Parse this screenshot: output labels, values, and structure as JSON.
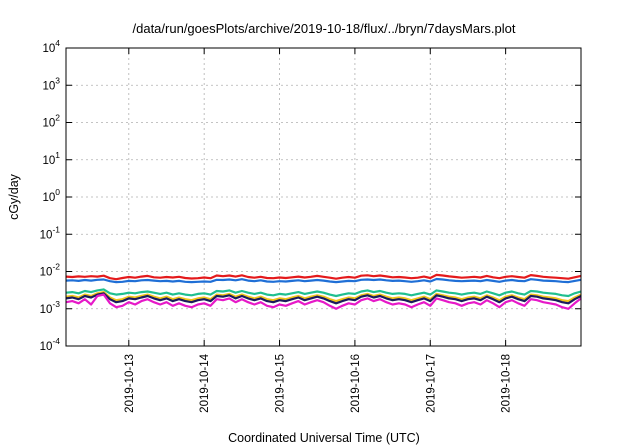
{
  "chart_data": {
    "type": "line",
    "title": "/data/run/goesPlots/archive/2019-10-18/flux/../bryn/7daysMars.plot",
    "xlabel": "Coordinated Universal Time (UTC)",
    "ylabel": "cGy/day",
    "y_scale": "log",
    "ylim": [
      0.0001,
      10000
    ],
    "xlim": [
      "2019-10-12T04:00",
      "2019-10-19T00:00"
    ],
    "y_ticks": [
      {
        "value": 0.0001,
        "base": "10",
        "exp": "-4"
      },
      {
        "value": 0.001,
        "base": "10",
        "exp": "-3"
      },
      {
        "value": 0.01,
        "base": "10",
        "exp": "-2"
      },
      {
        "value": 0.1,
        "base": "10",
        "exp": "-1"
      },
      {
        "value": 1,
        "base": "10",
        "exp": "0"
      },
      {
        "value": 10,
        "base": "10",
        "exp": "1"
      },
      {
        "value": 100,
        "base": "10",
        "exp": "2"
      },
      {
        "value": 1000,
        "base": "10",
        "exp": "3"
      },
      {
        "value": 10000,
        "base": "10",
        "exp": "4"
      }
    ],
    "x_ticks": [
      {
        "value": "2019-10-13T00:00",
        "label": "2019-10-13"
      },
      {
        "value": "2019-10-14T00:00",
        "label": "2019-10-14"
      },
      {
        "value": "2019-10-15T00:00",
        "label": "2019-10-15"
      },
      {
        "value": "2019-10-16T00:00",
        "label": "2019-10-16"
      },
      {
        "value": "2019-10-17T00:00",
        "label": "2019-10-17"
      },
      {
        "value": "2019-10-18T00:00",
        "label": "2019-10-18"
      }
    ],
    "grid": true,
    "x": [
      "2019-10-12T04:00",
      "2019-10-12T06:00",
      "2019-10-12T08:00",
      "2019-10-12T10:00",
      "2019-10-12T12:00",
      "2019-10-12T14:00",
      "2019-10-12T16:00",
      "2019-10-12T18:00",
      "2019-10-12T20:00",
      "2019-10-12T22:00",
      "2019-10-13T00:00",
      "2019-10-13T02:00",
      "2019-10-13T04:00",
      "2019-10-13T06:00",
      "2019-10-13T08:00",
      "2019-10-13T10:00",
      "2019-10-13T12:00",
      "2019-10-13T14:00",
      "2019-10-13T16:00",
      "2019-10-13T18:00",
      "2019-10-13T20:00",
      "2019-10-13T22:00",
      "2019-10-14T00:00",
      "2019-10-14T02:00",
      "2019-10-14T04:00",
      "2019-10-14T06:00",
      "2019-10-14T08:00",
      "2019-10-14T10:00",
      "2019-10-14T12:00",
      "2019-10-14T14:00",
      "2019-10-14T16:00",
      "2019-10-14T18:00",
      "2019-10-14T20:00",
      "2019-10-14T22:00",
      "2019-10-15T00:00",
      "2019-10-15T02:00",
      "2019-10-15T04:00",
      "2019-10-15T06:00",
      "2019-10-15T08:00",
      "2019-10-15T10:00",
      "2019-10-15T12:00",
      "2019-10-15T14:00",
      "2019-10-15T16:00",
      "2019-10-15T18:00",
      "2019-10-15T20:00",
      "2019-10-15T22:00",
      "2019-10-16T00:00",
      "2019-10-16T02:00",
      "2019-10-16T04:00",
      "2019-10-16T06:00",
      "2019-10-16T08:00",
      "2019-10-16T10:00",
      "2019-10-16T12:00",
      "2019-10-16T14:00",
      "2019-10-16T16:00",
      "2019-10-16T18:00",
      "2019-10-16T20:00",
      "2019-10-16T22:00",
      "2019-10-17T00:00",
      "2019-10-17T02:00",
      "2019-10-17T04:00",
      "2019-10-17T06:00",
      "2019-10-17T08:00",
      "2019-10-17T10:00",
      "2019-10-17T12:00",
      "2019-10-17T14:00",
      "2019-10-17T16:00",
      "2019-10-17T18:00",
      "2019-10-17T20:00",
      "2019-10-17T22:00",
      "2019-10-18T00:00",
      "2019-10-18T02:00",
      "2019-10-18T04:00",
      "2019-10-18T06:00",
      "2019-10-18T08:00",
      "2019-10-18T10:00",
      "2019-10-18T12:00",
      "2019-10-18T14:00",
      "2019-10-18T16:00",
      "2019-10-18T18:00",
      "2019-10-18T20:00",
      "2019-10-18T22:00",
      "2019-10-19T00:00"
    ],
    "series": [
      {
        "color": "#e41a1c",
        "values": [
          0.0073,
          0.0071,
          0.0074,
          0.0072,
          0.0075,
          0.0073,
          0.0077,
          0.0066,
          0.0062,
          0.0067,
          0.0071,
          0.0068,
          0.0073,
          0.0076,
          0.007,
          0.0068,
          0.0071,
          0.0069,
          0.0072,
          0.0067,
          0.0065,
          0.0066,
          0.0069,
          0.0066,
          0.0078,
          0.0075,
          0.0078,
          0.0073,
          0.0079,
          0.0071,
          0.0068,
          0.0072,
          0.0067,
          0.0066,
          0.0069,
          0.0067,
          0.007,
          0.0073,
          0.0069,
          0.0072,
          0.0076,
          0.0072,
          0.0068,
          0.0064,
          0.0068,
          0.0071,
          0.0068,
          0.0077,
          0.0079,
          0.0075,
          0.0078,
          0.0074,
          0.007,
          0.0071,
          0.0069,
          0.0066,
          0.0068,
          0.0073,
          0.0067,
          0.0081,
          0.0078,
          0.0074,
          0.0071,
          0.0068,
          0.007,
          0.0072,
          0.0069,
          0.0076,
          0.007,
          0.0066,
          0.0072,
          0.0075,
          0.0071,
          0.0068,
          0.008,
          0.0076,
          0.0072,
          0.007,
          0.0068,
          0.0066,
          0.0064,
          0.007,
          0.0076
        ]
      },
      {
        "color": "#1f6fd6",
        "values": [
          0.0057,
          0.0058,
          0.0056,
          0.0059,
          0.0057,
          0.006,
          0.0061,
          0.0055,
          0.0052,
          0.0053,
          0.0056,
          0.0055,
          0.0058,
          0.0059,
          0.0057,
          0.0055,
          0.0056,
          0.0054,
          0.0056,
          0.0053,
          0.0052,
          0.0053,
          0.0054,
          0.0053,
          0.006,
          0.0059,
          0.0061,
          0.0058,
          0.0062,
          0.0057,
          0.0055,
          0.0058,
          0.0054,
          0.0053,
          0.0055,
          0.0054,
          0.0056,
          0.0058,
          0.0055,
          0.0057,
          0.0059,
          0.0057,
          0.0054,
          0.0052,
          0.0054,
          0.0056,
          0.0055,
          0.006,
          0.0061,
          0.0059,
          0.0061,
          0.0058,
          0.0056,
          0.0057,
          0.0055,
          0.0053,
          0.0055,
          0.0058,
          0.0054,
          0.0063,
          0.0061,
          0.0058,
          0.0056,
          0.0055,
          0.0056,
          0.0057,
          0.0055,
          0.0059,
          0.0056,
          0.0053,
          0.0057,
          0.0059,
          0.0056,
          0.0055,
          0.0062,
          0.006,
          0.0057,
          0.0056,
          0.0055,
          0.0053,
          0.0052,
          0.0056,
          0.006
        ]
      },
      {
        "color": "#1fbf8f",
        "values": [
          0.0027,
          0.0028,
          0.0026,
          0.003,
          0.0028,
          0.0031,
          0.0033,
          0.0026,
          0.0024,
          0.0025,
          0.0027,
          0.0026,
          0.0028,
          0.0029,
          0.0027,
          0.0025,
          0.0027,
          0.0024,
          0.0026,
          0.0024,
          0.0023,
          0.0025,
          0.0026,
          0.0024,
          0.003,
          0.0029,
          0.0031,
          0.0027,
          0.003,
          0.0027,
          0.0025,
          0.0027,
          0.0024,
          0.0023,
          0.0025,
          0.0024,
          0.0026,
          0.0028,
          0.0025,
          0.0027,
          0.0029,
          0.0027,
          0.0024,
          0.0022,
          0.0024,
          0.0026,
          0.0025,
          0.0029,
          0.0031,
          0.0028,
          0.003,
          0.0027,
          0.0025,
          0.0026,
          0.0025,
          0.0023,
          0.0025,
          0.0027,
          0.0024,
          0.0031,
          0.0029,
          0.0027,
          0.0026,
          0.0024,
          0.0026,
          0.0027,
          0.0025,
          0.0029,
          0.0026,
          0.0023,
          0.0027,
          0.0029,
          0.0026,
          0.0024,
          0.003,
          0.0029,
          0.0027,
          0.0026,
          0.0025,
          0.0023,
          0.0022,
          0.0026,
          0.0029
        ]
      },
      {
        "color": "#f0c419",
        "values": [
          0.0021,
          0.0022,
          0.002,
          0.0024,
          0.0022,
          0.0026,
          0.0028,
          0.002,
          0.0017,
          0.0018,
          0.0021,
          0.002,
          0.0022,
          0.0024,
          0.0021,
          0.0019,
          0.0021,
          0.0018,
          0.002,
          0.0018,
          0.0017,
          0.0019,
          0.002,
          0.0018,
          0.0024,
          0.0023,
          0.0025,
          0.0021,
          0.0024,
          0.0021,
          0.0019,
          0.0021,
          0.0018,
          0.0017,
          0.0019,
          0.0018,
          0.002,
          0.0022,
          0.0019,
          0.0021,
          0.0023,
          0.0021,
          0.0018,
          0.0016,
          0.0018,
          0.002,
          0.0019,
          0.0023,
          0.0025,
          0.0022,
          0.0024,
          0.0021,
          0.0019,
          0.002,
          0.0019,
          0.0017,
          0.0019,
          0.0021,
          0.0018,
          0.0025,
          0.0023,
          0.0021,
          0.002,
          0.0018,
          0.002,
          0.0021,
          0.0019,
          0.0023,
          0.002,
          0.0017,
          0.0021,
          0.0023,
          0.002,
          0.0018,
          0.0024,
          0.0023,
          0.0021,
          0.002,
          0.0019,
          0.0017,
          0.0016,
          0.002,
          0.0024
        ]
      },
      {
        "color": "#1b1b5e",
        "values": [
          0.0019,
          0.002,
          0.0018,
          0.0022,
          0.002,
          0.0024,
          0.0026,
          0.0018,
          0.0015,
          0.0016,
          0.0019,
          0.0018,
          0.002,
          0.0022,
          0.0019,
          0.0017,
          0.0019,
          0.0016,
          0.0018,
          0.0016,
          0.0015,
          0.0017,
          0.0018,
          0.0016,
          0.0022,
          0.0021,
          0.0023,
          0.0019,
          0.0022,
          0.0019,
          0.0017,
          0.0019,
          0.0016,
          0.0015,
          0.0017,
          0.0016,
          0.0018,
          0.002,
          0.0017,
          0.0019,
          0.0021,
          0.0019,
          0.0016,
          0.0014,
          0.0016,
          0.0018,
          0.0017,
          0.0021,
          0.0023,
          0.002,
          0.0022,
          0.0019,
          0.0017,
          0.0018,
          0.0017,
          0.0015,
          0.0017,
          0.0019,
          0.0016,
          0.0023,
          0.0021,
          0.0019,
          0.0018,
          0.0016,
          0.0018,
          0.0019,
          0.0017,
          0.0021,
          0.0018,
          0.0015,
          0.0019,
          0.0021,
          0.0018,
          0.0016,
          0.0022,
          0.0021,
          0.0019,
          0.0018,
          0.0017,
          0.0015,
          0.0014,
          0.0018,
          0.0022
        ]
      },
      {
        "color": "#e619c8",
        "values": [
          0.0015,
          0.0016,
          0.0014,
          0.0018,
          0.0013,
          0.0022,
          0.0024,
          0.0014,
          0.0011,
          0.0012,
          0.0015,
          0.0013,
          0.0016,
          0.0018,
          0.0015,
          0.0013,
          0.0015,
          0.0012,
          0.0014,
          0.0012,
          0.0011,
          0.0013,
          0.0014,
          0.0012,
          0.0018,
          0.0017,
          0.0019,
          0.0015,
          0.0018,
          0.0015,
          0.0013,
          0.0015,
          0.0012,
          0.0011,
          0.0013,
          0.0012,
          0.0014,
          0.0016,
          0.0013,
          0.0015,
          0.0017,
          0.0015,
          0.0012,
          0.001,
          0.0012,
          0.0014,
          0.0013,
          0.0017,
          0.0019,
          0.0016,
          0.0018,
          0.0015,
          0.0013,
          0.0014,
          0.0013,
          0.0011,
          0.0013,
          0.0015,
          0.0012,
          0.0019,
          0.0017,
          0.0015,
          0.0014,
          0.0012,
          0.0014,
          0.0015,
          0.0013,
          0.0017,
          0.0014,
          0.0011,
          0.0015,
          0.0017,
          0.0014,
          0.0012,
          0.0018,
          0.0017,
          0.0015,
          0.0014,
          0.0013,
          0.0011,
          0.001,
          0.0014,
          0.0019
        ]
      }
    ]
  }
}
